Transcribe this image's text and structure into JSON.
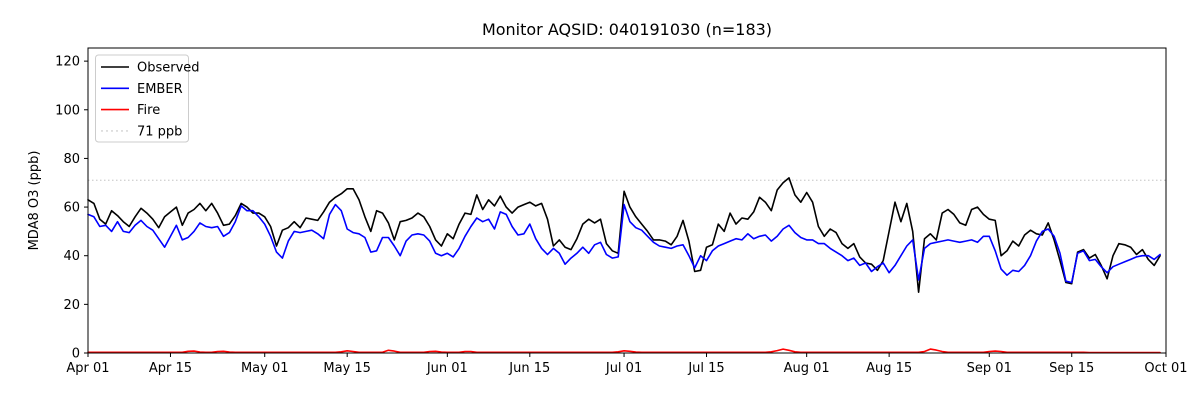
{
  "title": "Monitor AQSID: 040191030 (n=183)",
  "chart_data": {
    "type": "line",
    "title": "Monitor AQSID: 040191030 (n=183)",
    "xlabel": "",
    "ylabel": "MDA8 O3 (ppb)",
    "x_span_days": 183,
    "ylim": [
      0,
      125.4
    ],
    "yticks": [
      0,
      20,
      40,
      60,
      80,
      100,
      120
    ],
    "xticks": {
      "days": [
        0,
        14,
        30,
        44,
        61,
        75,
        91,
        105,
        122,
        136,
        153,
        167,
        183
      ],
      "labels": [
        "Apr 01",
        "Apr 15",
        "May 01",
        "May 15",
        "Jun 01",
        "Jun 15",
        "Jul 01",
        "Jul 15",
        "Aug 01",
        "Aug 15",
        "Sep 01",
        "Sep 15",
        "Oct 01"
      ]
    },
    "grid": false,
    "legend_position": "upper left",
    "threshold": {
      "label": "71 ppb",
      "value": 71,
      "color": "#d3d3d3",
      "linestyle": "dotted"
    },
    "legend": [
      {
        "label": "Observed",
        "color": "#000000",
        "linestyle": "solid"
      },
      {
        "label": "EMBER",
        "color": "#0000ff",
        "linestyle": "solid"
      },
      {
        "label": "Fire",
        "color": "#ff0000",
        "linestyle": "solid"
      },
      {
        "label": "71 ppb",
        "color": "#d3d3d3",
        "linestyle": "dotted"
      }
    ],
    "series": [
      {
        "name": "Observed",
        "color": "#000000",
        "values": [
          63,
          61.5,
          55,
          53,
          58.5,
          56.5,
          54,
          52,
          56,
          59.5,
          57.5,
          55,
          51.5,
          56,
          58,
          60,
          52.5,
          57.5,
          59,
          61.5,
          58.5,
          61.5,
          57.5,
          52.5,
          53,
          56.5,
          61.5,
          60,
          57.5,
          57.5,
          56,
          52,
          44,
          50.5,
          51.5,
          54,
          51.5,
          55.5,
          55,
          54.5,
          58,
          62,
          64,
          65.5,
          67.5,
          67.5,
          63,
          56,
          50,
          58.5,
          57.5,
          53.5,
          46.5,
          54,
          54.5,
          55.5,
          57.5,
          56,
          52,
          46.5,
          44,
          49,
          47,
          53,
          57.5,
          57,
          65,
          59,
          63,
          60.5,
          64.5,
          60,
          57.5,
          60,
          61,
          62,
          60.5,
          61.5,
          55,
          44,
          46.5,
          43.5,
          42.5,
          47,
          53,
          55,
          53.5,
          55,
          45,
          42,
          41,
          66.5,
          60,
          56,
          53,
          50,
          46.5,
          46.5,
          46,
          44.5,
          48,
          54.5,
          46,
          33.5,
          34,
          43.5,
          44.5,
          53,
          50,
          57.5,
          53,
          55.5,
          55,
          58,
          64,
          62,
          58.5,
          67,
          70,
          72,
          65,
          62,
          66,
          62,
          52,
          48,
          51,
          49.5,
          45,
          43,
          45,
          39.5,
          37,
          36.5,
          34,
          38,
          50,
          62,
          54,
          61.5,
          50,
          25,
          47,
          49,
          46.5,
          57.5,
          59,
          57,
          53.5,
          52.5,
          59,
          60,
          57,
          55,
          54.5,
          40,
          42,
          46,
          44,
          48.5,
          50.5,
          49,
          48.5,
          53.5,
          46.5,
          38,
          29,
          28.5,
          41.5,
          42.5,
          39,
          40.5,
          36,
          30.5,
          40,
          45,
          44.5,
          43.5,
          40.5,
          42.5,
          38.5,
          36,
          40
        ]
      },
      {
        "name": "EMBER",
        "color": "#0000ff",
        "values": [
          57,
          56,
          52,
          52.5,
          50,
          54,
          50,
          49.5,
          52.5,
          54.5,
          52,
          50.5,
          47,
          43.5,
          48,
          52.5,
          46.5,
          47.5,
          50,
          53.5,
          52,
          51.5,
          52,
          48,
          49.5,
          54,
          60.5,
          58.5,
          58.5,
          56,
          53,
          48,
          41.5,
          39,
          46,
          50,
          49.5,
          50,
          50.5,
          49,
          47,
          57,
          61,
          58.5,
          51,
          49.5,
          49,
          47.5,
          41.5,
          42,
          47.5,
          47.5,
          44,
          40,
          46,
          48.5,
          49,
          48.5,
          46,
          41,
          40,
          41,
          39.5,
          43,
          48,
          52,
          55.5,
          54,
          55,
          51,
          58,
          57,
          52,
          48.5,
          49,
          53,
          47,
          43,
          40.5,
          43,
          41,
          36.5,
          39,
          41,
          43.5,
          41,
          44.5,
          45.5,
          40.5,
          39,
          39.5,
          61,
          54,
          51.5,
          50.5,
          48,
          45.5,
          44,
          43.5,
          43,
          44,
          44.5,
          40,
          35,
          40,
          38,
          42,
          44,
          45,
          46,
          47,
          46.5,
          49,
          47,
          48,
          48.5,
          46,
          48,
          51,
          52.5,
          49.5,
          47.5,
          46.5,
          46.5,
          45,
          45,
          43,
          41.5,
          40,
          38,
          39,
          36,
          37,
          33.5,
          35.5,
          37,
          33,
          36,
          40,
          44,
          46.5,
          30,
          43,
          45,
          45.5,
          46,
          46.5,
          46,
          45.5,
          46,
          46.5,
          45.5,
          48,
          48,
          42,
          34.5,
          32,
          34,
          33.5,
          36,
          40,
          46,
          50,
          51,
          48,
          41,
          29.5,
          29,
          41,
          42,
          38,
          38.5,
          35.5,
          33,
          35.5,
          36.5,
          37.5,
          38.5,
          39.5,
          40,
          40,
          38.5,
          40.5
        ]
      },
      {
        "name": "Fire",
        "color": "#ff0000",
        "values": [
          0.3,
          0.3,
          0.3,
          0.3,
          0.3,
          0.3,
          0.3,
          0.3,
          0.3,
          0.3,
          0.3,
          0.3,
          0.3,
          0.3,
          0.3,
          0.3,
          0.3,
          0.7,
          0.8,
          0.4,
          0.3,
          0.3,
          0.6,
          0.7,
          0.4,
          0.3,
          0.3,
          0.3,
          0.3,
          0.3,
          0.3,
          0.3,
          0.3,
          0.3,
          0.3,
          0.3,
          0.3,
          0.3,
          0.3,
          0.3,
          0.3,
          0.3,
          0.3,
          0.5,
          0.9,
          0.6,
          0.3,
          0.3,
          0.3,
          0.3,
          0.3,
          1.1,
          0.8,
          0.3,
          0.3,
          0.3,
          0.3,
          0.3,
          0.6,
          0.7,
          0.4,
          0.3,
          0.3,
          0.3,
          0.6,
          0.6,
          0.3,
          0.3,
          0.3,
          0.3,
          0.3,
          0.3,
          0.3,
          0.3,
          0.3,
          0.3,
          0.3,
          0.3,
          0.3,
          0.3,
          0.3,
          0.3,
          0.3,
          0.3,
          0.3,
          0.3,
          0.3,
          0.3,
          0.3,
          0.3,
          0.5,
          0.9,
          0.7,
          0.4,
          0.3,
          0.3,
          0.3,
          0.3,
          0.3,
          0.3,
          0.3,
          0.3,
          0.3,
          0.3,
          0.3,
          0.3,
          0.3,
          0.3,
          0.3,
          0.3,
          0.3,
          0.3,
          0.3,
          0.3,
          0.3,
          0.3,
          0.5,
          1.0,
          1.6,
          1.1,
          0.5,
          0.3,
          0.3,
          0.3,
          0.3,
          0.3,
          0.3,
          0.3,
          0.3,
          0.3,
          0.3,
          0.3,
          0.3,
          0.3,
          0.3,
          0.3,
          0.3,
          0.3,
          0.3,
          0.3,
          0.3,
          0.3,
          0.6,
          1.6,
          1.2,
          0.6,
          0.3,
          0.3,
          0.3,
          0.3,
          0.3,
          0.3,
          0.3,
          0.6,
          0.8,
          0.6,
          0.3,
          0.3,
          0.3,
          0.3,
          0.3,
          0.3,
          0.3,
          0.3,
          0.3,
          0.3,
          0.3,
          0.3,
          0.3,
          0.3,
          0.2,
          0.2,
          0.2,
          0.2,
          0.2,
          0.2,
          0.2,
          0.2,
          0.2,
          0.2,
          0.2,
          0.2,
          0.2
        ]
      }
    ]
  }
}
